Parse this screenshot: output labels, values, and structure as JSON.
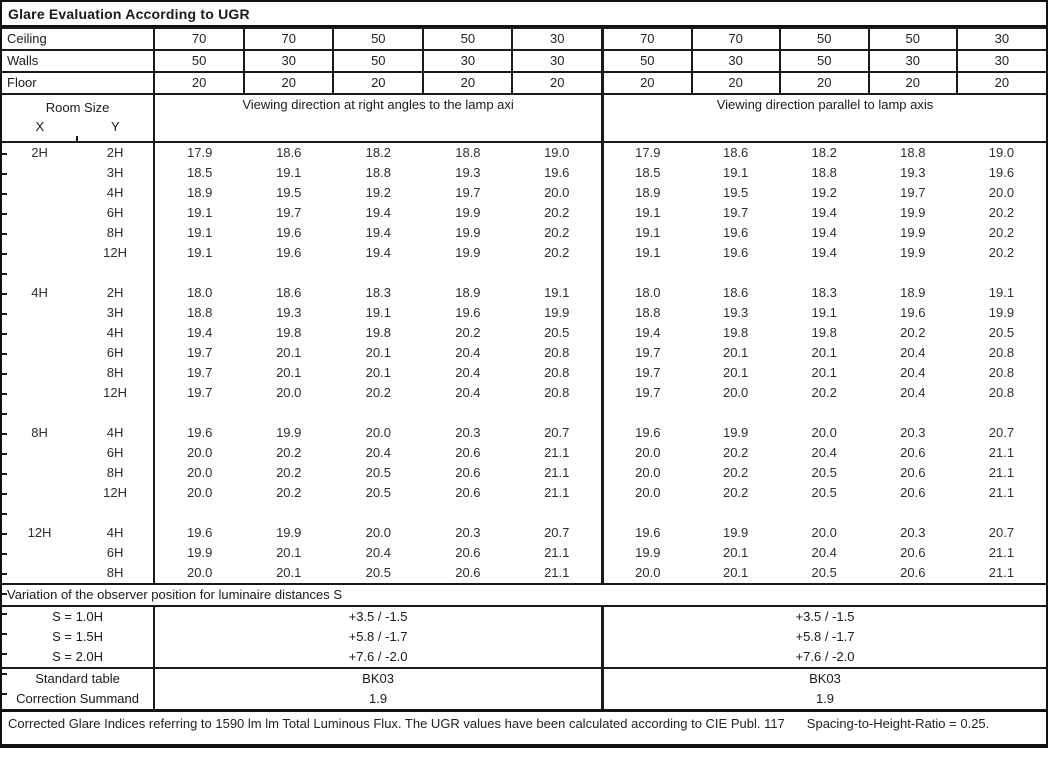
{
  "title": "Glare Evaluation According to UGR",
  "surface_rows": [
    {
      "label": "Ceiling",
      "values": [
        "70",
        "70",
        "50",
        "50",
        "30",
        "70",
        "70",
        "50",
        "50",
        "30"
      ]
    },
    {
      "label": "Walls",
      "values": [
        "50",
        "30",
        "50",
        "30",
        "30",
        "50",
        "30",
        "50",
        "30",
        "30"
      ]
    },
    {
      "label": "Floor",
      "values": [
        "20",
        "20",
        "20",
        "20",
        "20",
        "20",
        "20",
        "20",
        "20",
        "20"
      ]
    }
  ],
  "header": {
    "room_size": "Room Size",
    "x_label": "X",
    "y_label": "Y",
    "left_section": "Viewing direction at right angles to the lamp axi",
    "right_section": "Viewing direction parallel to lamp axis"
  },
  "blocks": [
    {
      "x": "2H",
      "rows": [
        {
          "y": "2H",
          "values": [
            "17.9",
            "18.6",
            "18.2",
            "18.8",
            "19.0",
            "17.9",
            "18.6",
            "18.2",
            "18.8",
            "19.0"
          ]
        },
        {
          "y": "3H",
          "values": [
            "18.5",
            "19.1",
            "18.8",
            "19.3",
            "19.6",
            "18.5",
            "19.1",
            "18.8",
            "19.3",
            "19.6"
          ]
        },
        {
          "y": "4H",
          "values": [
            "18.9",
            "19.5",
            "19.2",
            "19.7",
            "20.0",
            "18.9",
            "19.5",
            "19.2",
            "19.7",
            "20.0"
          ]
        },
        {
          "y": "6H",
          "values": [
            "19.1",
            "19.7",
            "19.4",
            "19.9",
            "20.2",
            "19.1",
            "19.7",
            "19.4",
            "19.9",
            "20.2"
          ]
        },
        {
          "y": "8H",
          "values": [
            "19.1",
            "19.6",
            "19.4",
            "19.9",
            "20.2",
            "19.1",
            "19.6",
            "19.4",
            "19.9",
            "20.2"
          ]
        },
        {
          "y": "12H",
          "values": [
            "19.1",
            "19.6",
            "19.4",
            "19.9",
            "20.2",
            "19.1",
            "19.6",
            "19.4",
            "19.9",
            "20.2"
          ]
        }
      ]
    },
    {
      "x": "4H",
      "rows": [
        {
          "y": "2H",
          "values": [
            "18.0",
            "18.6",
            "18.3",
            "18.9",
            "19.1",
            "18.0",
            "18.6",
            "18.3",
            "18.9",
            "19.1"
          ]
        },
        {
          "y": "3H",
          "values": [
            "18.8",
            "19.3",
            "19.1",
            "19.6",
            "19.9",
            "18.8",
            "19.3",
            "19.1",
            "19.6",
            "19.9"
          ]
        },
        {
          "y": "4H",
          "values": [
            "19.4",
            "19.8",
            "19.8",
            "20.2",
            "20.5",
            "19.4",
            "19.8",
            "19.8",
            "20.2",
            "20.5"
          ]
        },
        {
          "y": "6H",
          "values": [
            "19.7",
            "20.1",
            "20.1",
            "20.4",
            "20.8",
            "19.7",
            "20.1",
            "20.1",
            "20.4",
            "20.8"
          ]
        },
        {
          "y": "8H",
          "values": [
            "19.7",
            "20.1",
            "20.1",
            "20.4",
            "20.8",
            "19.7",
            "20.1",
            "20.1",
            "20.4",
            "20.8"
          ]
        },
        {
          "y": "12H",
          "values": [
            "19.7",
            "20.0",
            "20.2",
            "20.4",
            "20.8",
            "19.7",
            "20.0",
            "20.2",
            "20.4",
            "20.8"
          ]
        }
      ]
    },
    {
      "x": "8H",
      "rows": [
        {
          "y": "4H",
          "values": [
            "19.6",
            "19.9",
            "20.0",
            "20.3",
            "20.7",
            "19.6",
            "19.9",
            "20.0",
            "20.3",
            "20.7"
          ]
        },
        {
          "y": "6H",
          "values": [
            "20.0",
            "20.2",
            "20.4",
            "20.6",
            "21.1",
            "20.0",
            "20.2",
            "20.4",
            "20.6",
            "21.1"
          ]
        },
        {
          "y": "8H",
          "values": [
            "20.0",
            "20.2",
            "20.5",
            "20.6",
            "21.1",
            "20.0",
            "20.2",
            "20.5",
            "20.6",
            "21.1"
          ]
        },
        {
          "y": "12H",
          "values": [
            "20.0",
            "20.2",
            "20.5",
            "20.6",
            "21.1",
            "20.0",
            "20.2",
            "20.5",
            "20.6",
            "21.1"
          ]
        }
      ]
    },
    {
      "x": "12H",
      "rows": [
        {
          "y": "4H",
          "values": [
            "19.6",
            "19.9",
            "20.0",
            "20.3",
            "20.7",
            "19.6",
            "19.9",
            "20.0",
            "20.3",
            "20.7"
          ]
        },
        {
          "y": "6H",
          "values": [
            "19.9",
            "20.1",
            "20.4",
            "20.6",
            "21.1",
            "19.9",
            "20.1",
            "20.4",
            "20.6",
            "21.1"
          ]
        },
        {
          "y": "8H",
          "values": [
            "20.0",
            "20.1",
            "20.5",
            "20.6",
            "21.1",
            "20.0",
            "20.1",
            "20.5",
            "20.6",
            "21.1"
          ]
        }
      ]
    }
  ],
  "variation_title": "Variation of the observer position for luminaire distances S",
  "variation_rows": [
    {
      "label": "S = 1.0H",
      "left": "+3.5 / -1.5",
      "right": "+3.5 / -1.5"
    },
    {
      "label": "S = 1.5H",
      "left": "+5.8 / -1.7",
      "right": "+5.8 / -1.7"
    },
    {
      "label": "S = 2.0H",
      "left": "+7.6 / -2.0",
      "right": "+7.6 / -2.0"
    }
  ],
  "summary_rows": [
    {
      "label": "Standard table",
      "left": "BK03",
      "right": "BK03"
    },
    {
      "label": "Correction Summand",
      "left": "1.9",
      "right": "1.9"
    }
  ],
  "footer": {
    "text": "Corrected Glare Indices referring to 1590 lm lm Total Luminous Flux. The UGR values have been calculated according to CIE Publ. 117",
    "ratio": "Spacing-to-Height-Ratio = 0.25."
  }
}
